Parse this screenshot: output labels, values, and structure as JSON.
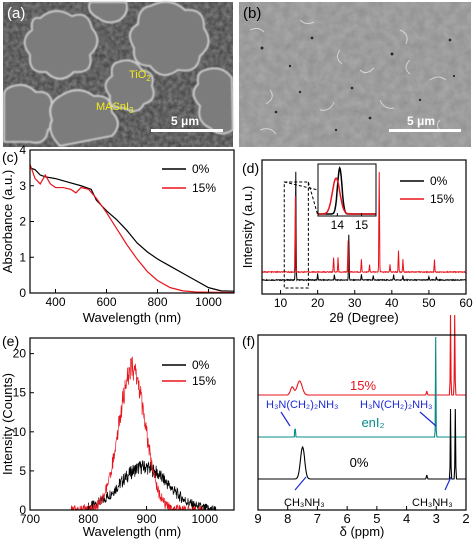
{
  "figure": {
    "panels": {
      "a": {
        "label": "(a)",
        "annotations": {
          "tio2": "TiO",
          "tio2_sub": "2",
          "masni": "MASnI",
          "masni_sub": "3",
          "scalebar": "5 μm"
        }
      },
      "b": {
        "label": "(b)",
        "annotations": {
          "scalebar": "5 μm"
        }
      },
      "c": {
        "label": "(c)"
      },
      "d": {
        "label": "(d)",
        "inset_ticks": [
          "14",
          "15"
        ]
      },
      "e": {
        "label": "(e)"
      },
      "f": {
        "label": "(f)",
        "annotations": {
          "sample_15": "15%",
          "en_formula_left": "H₃N(CH₂)₂NH₃",
          "en_formula_right": "H₃N(CH₂)₂NH₃",
          "eni2": "enI₂",
          "sample_0": "0%",
          "ma_formula_left": "CH₃NH₃",
          "ma_formula_right": "CH₃NH₃"
        }
      }
    },
    "colors": {
      "black": "#000000",
      "red": "#e8141b",
      "teal": "#0a8b8b",
      "blue": "#1d2bd6",
      "yellow": "#f3ec19"
    }
  },
  "chart_data": [
    {
      "panel": "c",
      "type": "line",
      "xlabel": "Wavelength (nm)",
      "ylabel": "Absorbance (a.u.)",
      "xlim": [
        300,
        1100
      ],
      "ylim": [
        0,
        4
      ],
      "xticks": [
        "400",
        "600",
        "800",
        "1000"
      ],
      "yticks": [
        "0",
        "1",
        "2",
        "3",
        "4"
      ],
      "legend": "top-right",
      "series": [
        {
          "name": "0%",
          "color": "#000000",
          "x": [
            300,
            320,
            340,
            360,
            400,
            450,
            500,
            540,
            560,
            600,
            640,
            680,
            720,
            760,
            800,
            850,
            900,
            950,
            1000,
            1050,
            1100
          ],
          "y": [
            3.5,
            3.45,
            3.3,
            3.25,
            3.2,
            3.1,
            3.0,
            2.9,
            2.6,
            2.3,
            2.05,
            1.75,
            1.4,
            1.15,
            0.95,
            0.75,
            0.55,
            0.35,
            0.15,
            0.06,
            0.05
          ]
        },
        {
          "name": "15%",
          "color": "#e8141b",
          "x": [
            300,
            320,
            340,
            360,
            380,
            400,
            430,
            460,
            480,
            500,
            530,
            560,
            600,
            640,
            680,
            720,
            760,
            800,
            850,
            900,
            950,
            1000,
            1100
          ],
          "y": [
            3.6,
            3.2,
            3.05,
            3.3,
            3.05,
            2.95,
            2.95,
            2.9,
            2.8,
            2.95,
            2.9,
            2.65,
            2.25,
            1.8,
            1.35,
            0.95,
            0.6,
            0.35,
            0.15,
            0.06,
            0.03,
            0.02,
            0.01
          ]
        }
      ]
    },
    {
      "panel": "d",
      "type": "line",
      "xlabel": "2θ (Degree)",
      "ylabel": "Intensity (a.u.)",
      "xlim": [
        5,
        60
      ],
      "xticks": [
        "10",
        "20",
        "30",
        "40",
        "50",
        "60"
      ],
      "legend": "top-right",
      "series": [
        {
          "name": "0%",
          "color": "#000000",
          "peaks": [
            [
              14.1,
              1.0
            ],
            [
              20.0,
              0.06
            ],
            [
              24.5,
              0.05
            ],
            [
              28.4,
              0.42
            ],
            [
              31.8,
              0.05
            ],
            [
              35.0,
              0.04
            ],
            [
              40.5,
              0.05
            ],
            [
              43.0,
              0.04
            ],
            [
              50.0,
              0.03
            ],
            [
              52.0,
              0.03
            ]
          ]
        },
        {
          "name": "15%",
          "color": "#e8141b",
          "peaks": [
            [
              14.0,
              0.72
            ],
            [
              24.3,
              0.14
            ],
            [
              25.5,
              0.14
            ],
            [
              28.2,
              0.3
            ],
            [
              31.8,
              0.12
            ],
            [
              34.0,
              0.07
            ],
            [
              36.6,
              0.95
            ],
            [
              39.5,
              0.07
            ],
            [
              41.8,
              0.2
            ],
            [
              43.0,
              0.12
            ],
            [
              51.5,
              0.12
            ]
          ]
        }
      ]
    },
    {
      "panel": "e",
      "type": "line",
      "xlabel": "Wavelength (nm)",
      "ylabel": "Intensity (Counts)",
      "xlim": [
        700,
        1050
      ],
      "ylim": [
        0,
        22
      ],
      "xticks": [
        "700",
        "800",
        "900",
        "1000"
      ],
      "yticks": [
        "0",
        "5",
        "10",
        "15",
        "20"
      ],
      "legend": "top-right",
      "series": [
        {
          "name": "0%",
          "color": "#000000",
          "center": 895,
          "peak": 5.5,
          "width": 58,
          "range": [
            800,
            1020
          ]
        },
        {
          "name": "15%",
          "color": "#e8141b",
          "center": 875,
          "peak": 18.0,
          "width": 32,
          "range": [
            770,
            1000
          ]
        }
      ]
    },
    {
      "panel": "f",
      "type": "line",
      "xlabel": "δ (ppm)",
      "xlim": [
        9,
        2
      ],
      "xticks": [
        "9",
        "8",
        "7",
        "6",
        "5",
        "4",
        "3",
        "2"
      ]
    }
  ]
}
